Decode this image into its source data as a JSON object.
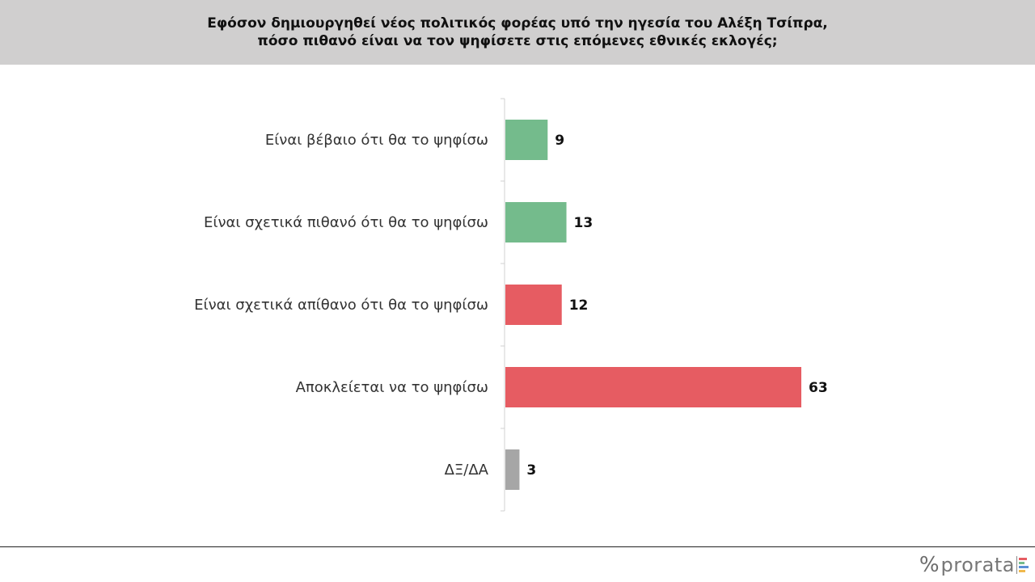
{
  "title": {
    "line1": "Εφόσον δημιουργηθεί νέος πολιτικός φορέας υπό την ηγεσία του Αλέξη Τσίπρα,",
    "line2": "πόσο πιθανό είναι να τον ψηφίσετε στις επόμενες εθνικές εκλογές;"
  },
  "chart_data": {
    "type": "bar",
    "orientation": "horizontal",
    "title": "Εφόσον δημιουργηθεί νέος πολιτικός φορέας υπό την ηγεσία του Αλέξη Τσίπρα, πόσο πιθανό είναι να τον ψηφίσετε στις επόμενες εθνικές εκλογές;",
    "categories": [
      "Είναι βέβαιο ότι θα το ψηφίσω",
      "Είναι σχετικά πιθανό ότι θα το ψηφίσω",
      "Είναι σχετικά απίθανο ότι θα το ψηφίσω",
      "Αποκλείεται να το ψηφίσω",
      "ΔΞ/ΔΑ"
    ],
    "values": [
      9,
      13,
      12,
      63,
      3
    ],
    "colors": [
      "#74bb8c",
      "#74bb8c",
      "#e65c62",
      "#e65c62",
      "#a6a6a6"
    ],
    "xlim": [
      0,
      100
    ],
    "grid": false,
    "legend": "none"
  },
  "logo": {
    "text": "prorata",
    "colors": [
      "#e65c62",
      "#74bb8c",
      "#5a8fd6",
      "#f0b94d"
    ]
  }
}
